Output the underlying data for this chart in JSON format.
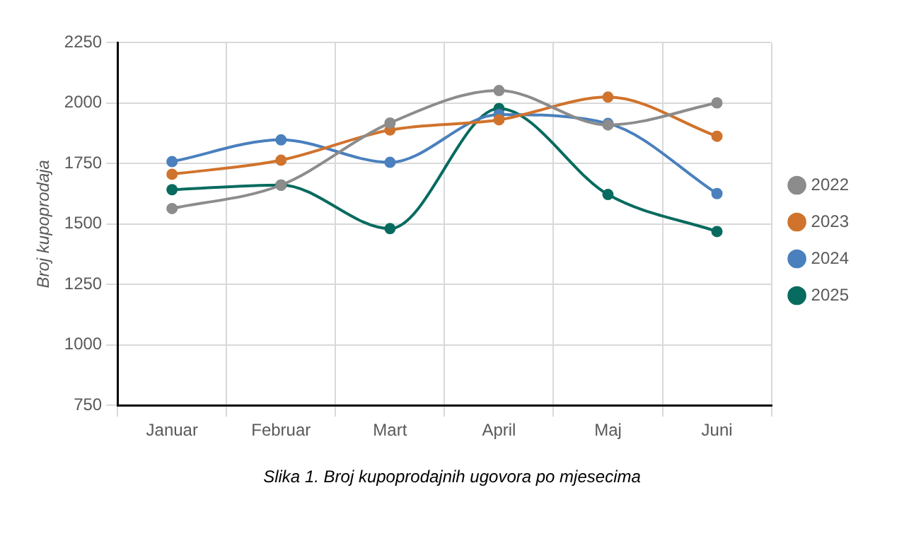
{
  "chart_data": {
    "type": "line",
    "ylabel": "Broj kupoprodaja",
    "categories": [
      "Januar",
      "Februar",
      "Mart",
      "April",
      "Maj",
      "Juni"
    ],
    "series": [
      {
        "name": "2022",
        "color": "#8c8c8c",
        "values": [
          1564,
          1661,
          1918,
          2052,
          1910,
          2001
        ]
      },
      {
        "name": "2023",
        "color": "#d0732c",
        "values": [
          1706,
          1764,
          1889,
          1931,
          2025,
          1863
        ]
      },
      {
        "name": "2024",
        "color": "#4a80bd",
        "values": [
          1758,
          1848,
          1755,
          1953,
          1916,
          1626
        ]
      },
      {
        "name": "2025",
        "color": "#086b5f",
        "values": [
          1642,
          1661,
          1481,
          1978,
          1622,
          1469
        ]
      }
    ],
    "ylim": [
      750,
      2250
    ],
    "yticks": [
      750,
      1000,
      1250,
      1500,
      1750,
      2000,
      2250
    ],
    "grid": true,
    "legend": "right",
    "marker": "circle",
    "annotations": [
      "Slika  1. Broj kupoprodajnih ugovora po mjesecima"
    ]
  }
}
